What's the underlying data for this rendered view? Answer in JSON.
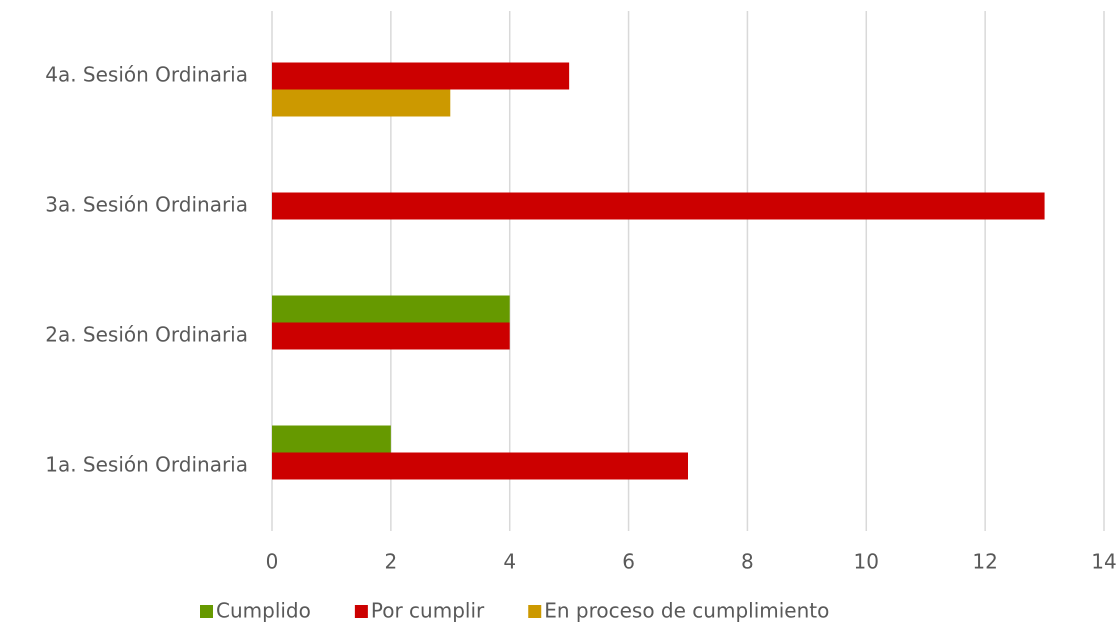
{
  "chart_data": {
    "type": "bar",
    "orientation": "horizontal",
    "categories": [
      "1a. Sesión Ordinaria",
      "2a. Sesión Ordinaria",
      "3a. Sesión Ordinaria",
      "4a. Sesión Ordinaria"
    ],
    "series": [
      {
        "name": "Cumplido",
        "color": "#669900",
        "values": [
          2,
          4,
          0,
          0
        ]
      },
      {
        "name": "Por cumplir",
        "color": "#cc0000",
        "values": [
          7,
          4,
          13,
          5
        ]
      },
      {
        "name": "En proceso de cumplimiento",
        "color": "#cc9900",
        "values": [
          0,
          0,
          0,
          3
        ]
      }
    ],
    "xlim": [
      0,
      14
    ],
    "xticks": [
      0,
      2,
      4,
      6,
      8,
      10,
      12,
      14
    ],
    "grid": true,
    "legend": "bottom"
  }
}
